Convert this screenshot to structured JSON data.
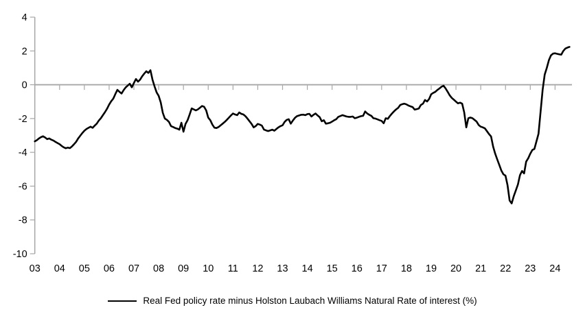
{
  "chart_data": {
    "type": "line",
    "title": "",
    "legend": "Real Fed policy rate minus Holston Laubach Williams Natural Rate of interest (%)",
    "x_frequency": "monthly",
    "x_start": "2003-01",
    "x_tick_labels": [
      "03",
      "04",
      "05",
      "06",
      "07",
      "08",
      "09",
      "10",
      "11",
      "12",
      "13",
      "14",
      "15",
      "16",
      "17",
      "18",
      "19",
      "20",
      "21",
      "22",
      "23",
      "24"
    ],
    "y_ticks": [
      4,
      2,
      0,
      -2,
      -4,
      -6,
      -8,
      -10
    ],
    "ylim": [
      -10,
      4
    ],
    "zero_line": true,
    "grid": false,
    "legend_position": "bottom-center",
    "line_color": "#000000",
    "axis_color": "#a6a6a6",
    "series": [
      {
        "name": "Real Fed policy rate minus Holston Laubach Williams Natural Rate of interest (%)",
        "values": [
          -3.35,
          -3.28,
          -3.18,
          -3.1,
          -3.05,
          -3.12,
          -3.22,
          -3.18,
          -3.25,
          -3.3,
          -3.38,
          -3.45,
          -3.52,
          -3.62,
          -3.7,
          -3.76,
          -3.72,
          -3.75,
          -3.65,
          -3.52,
          -3.38,
          -3.18,
          -3.02,
          -2.86,
          -2.72,
          -2.62,
          -2.55,
          -2.48,
          -2.55,
          -2.42,
          -2.3,
          -2.12,
          -1.98,
          -1.8,
          -1.62,
          -1.42,
          -1.18,
          -0.98,
          -0.82,
          -0.55,
          -0.3,
          -0.42,
          -0.52,
          -0.32,
          -0.16,
          -0.05,
          0.06,
          -0.15,
          0.1,
          0.34,
          0.18,
          0.3,
          0.5,
          0.66,
          0.8,
          0.7,
          0.86,
          0.3,
          -0.1,
          -0.45,
          -0.66,
          -1.05,
          -1.66,
          -2.0,
          -2.08,
          -2.2,
          -2.45,
          -2.5,
          -2.56,
          -2.6,
          -2.66,
          -2.25,
          -2.78,
          -2.32,
          -2.1,
          -1.76,
          -1.4,
          -1.46,
          -1.52,
          -1.46,
          -1.36,
          -1.26,
          -1.3,
          -1.52,
          -1.95,
          -2.1,
          -2.36,
          -2.54,
          -2.56,
          -2.5,
          -2.4,
          -2.3,
          -2.2,
          -2.08,
          -1.95,
          -1.82,
          -1.7,
          -1.76,
          -1.8,
          -1.64,
          -1.72,
          -1.76,
          -1.86,
          -2.0,
          -2.16,
          -2.32,
          -2.52,
          -2.45,
          -2.32,
          -2.36,
          -2.42,
          -2.65,
          -2.7,
          -2.74,
          -2.7,
          -2.66,
          -2.72,
          -2.62,
          -2.52,
          -2.45,
          -2.4,
          -2.2,
          -2.08,
          -2.04,
          -2.3,
          -2.12,
          -1.96,
          -1.86,
          -1.82,
          -1.78,
          -1.77,
          -1.8,
          -1.74,
          -1.72,
          -1.88,
          -1.78,
          -1.7,
          -1.82,
          -1.92,
          -2.16,
          -2.1,
          -2.3,
          -2.28,
          -2.25,
          -2.18,
          -2.1,
          -2.04,
          -1.9,
          -1.85,
          -1.8,
          -1.84,
          -1.88,
          -1.9,
          -1.9,
          -1.88,
          -1.98,
          -1.95,
          -1.9,
          -1.86,
          -1.84,
          -1.58,
          -1.7,
          -1.78,
          -1.84,
          -1.98,
          -2.0,
          -2.05,
          -2.1,
          -2.14,
          -2.28,
          -1.98,
          -2.02,
          -1.85,
          -1.7,
          -1.57,
          -1.46,
          -1.37,
          -1.2,
          -1.15,
          -1.12,
          -1.16,
          -1.23,
          -1.28,
          -1.32,
          -1.47,
          -1.44,
          -1.41,
          -1.2,
          -1.12,
          -0.9,
          -0.99,
          -0.84,
          -0.56,
          -0.48,
          -0.42,
          -0.31,
          -0.22,
          -0.12,
          -0.06,
          -0.22,
          -0.42,
          -0.63,
          -0.78,
          -0.89,
          -1.0,
          -1.1,
          -1.06,
          -1.12,
          -1.64,
          -2.52,
          -1.98,
          -1.94,
          -1.98,
          -2.08,
          -2.18,
          -2.38,
          -2.48,
          -2.52,
          -2.58,
          -2.75,
          -2.92,
          -3.06,
          -3.66,
          -4.08,
          -4.42,
          -4.75,
          -5.08,
          -5.3,
          -5.38,
          -5.95,
          -6.85,
          -7.02,
          -6.6,
          -6.25,
          -5.9,
          -5.35,
          -5.1,
          -5.25,
          -4.55,
          -4.35,
          -4.08,
          -3.86,
          -3.8,
          -3.35,
          -2.9,
          -1.6,
          -0.3,
          0.6,
          1.0,
          1.45,
          1.74,
          1.84,
          1.86,
          1.83,
          1.8,
          1.78,
          2.0,
          2.14,
          2.2,
          2.24
        ]
      }
    ]
  }
}
